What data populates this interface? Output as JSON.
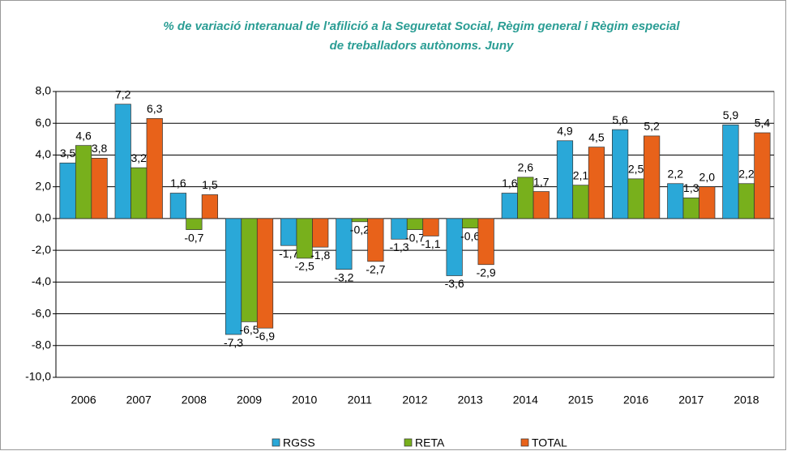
{
  "chart_data": {
    "type": "bar",
    "title": [
      "% de variació interanual de l'afilició a la Seguretat Social, Règim general i Règim especial",
      "de treballadors autònoms. Juny"
    ],
    "categories": [
      "2006",
      "2007",
      "2008",
      "2009",
      "2010",
      "2011",
      "2012",
      "2013",
      "2014",
      "2015",
      "2016",
      "2017",
      "2018"
    ],
    "series": [
      {
        "name": "RGSS",
        "color": "#2aa8d8",
        "values": [
          3.5,
          7.2,
          1.6,
          -7.3,
          -1.7,
          -3.2,
          -1.3,
          -3.6,
          1.6,
          4.9,
          5.6,
          2.2,
          5.9
        ],
        "value_labels": [
          "3,5",
          "7,2",
          "1,6",
          "-7,3",
          "-1,7",
          "-3,2",
          "-1,3",
          "-3,6",
          "1,6",
          "4,9",
          "5,6",
          "2,2",
          "5,9"
        ]
      },
      {
        "name": "RETA",
        "color": "#78b01c",
        "values": [
          4.6,
          3.2,
          -0.7,
          -6.5,
          -2.5,
          -0.2,
          -0.7,
          -0.6,
          2.6,
          2.1,
          2.5,
          1.3,
          2.2
        ],
        "value_labels": [
          "4,6",
          "3,2",
          "-0,7",
          "-6,5",
          "-2,5",
          "-0,2",
          "-0,7",
          "-0,6",
          "2,6",
          "2,1",
          "2,5",
          "1,3",
          "2,2"
        ]
      },
      {
        "name": "TOTAL",
        "color": "#e8621a",
        "values": [
          3.8,
          6.3,
          1.5,
          -6.9,
          -1.8,
          -2.7,
          -1.1,
          -2.9,
          1.7,
          4.5,
          5.2,
          2.0,
          5.4
        ],
        "value_labels": [
          "3,8",
          "6,3",
          "1,5",
          "-6,9",
          "-1,8",
          "-2,7",
          "-1,1",
          "-2,9",
          "1,7",
          "4,5",
          "5,2",
          "2,0",
          "5,4"
        ]
      }
    ],
    "ylim": [
      -10,
      8
    ],
    "yticks": [
      {
        "value": -10,
        "label": "-10,0"
      },
      {
        "value": -8,
        "label": "-8,0"
      },
      {
        "value": -6,
        "label": "-6,0"
      },
      {
        "value": -4,
        "label": "-4,0"
      },
      {
        "value": -2,
        "label": "-2,0"
      },
      {
        "value": 0,
        "label": "0,0"
      },
      {
        "value": 2,
        "label": "2,0"
      },
      {
        "value": 4,
        "label": "4,0"
      },
      {
        "value": 6,
        "label": "6,0"
      },
      {
        "value": 8,
        "label": "8,0"
      }
    ],
    "grid": true,
    "legend": "bottom"
  }
}
